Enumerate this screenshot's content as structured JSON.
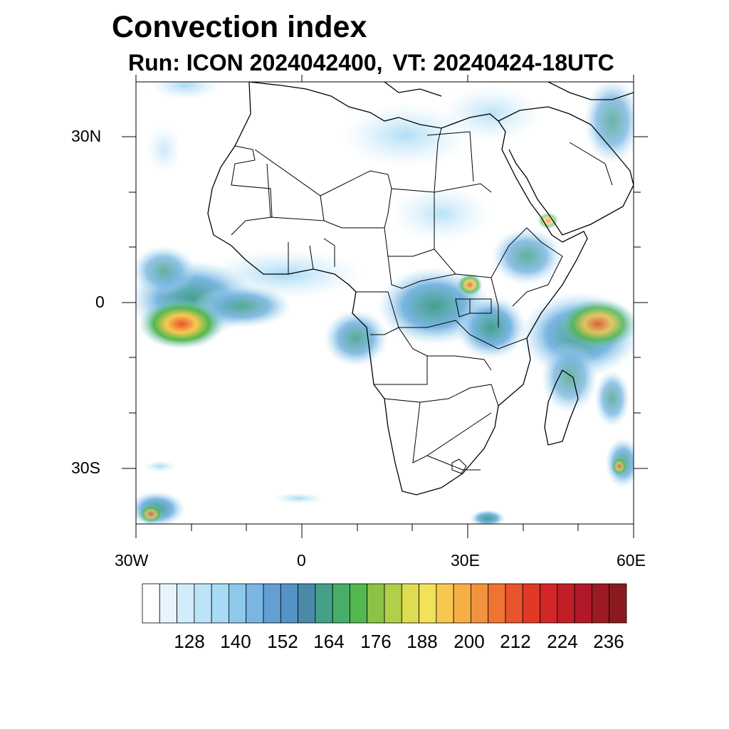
{
  "title": "Convection index",
  "subtitle": {
    "run": "Run: ICON 2024042400,",
    "valid_time": "VT: 20240424-18UTC"
  },
  "axes": {
    "lat_labels": [
      "30N",
      "0",
      "30S"
    ],
    "lon_labels": [
      "30W",
      "0",
      "30E",
      "60E"
    ],
    "lon_range": [
      -30,
      60
    ],
    "lat_range": [
      -40,
      40
    ]
  },
  "colorbar": {
    "colors": [
      "#ffffff",
      "#e8f4fc",
      "#d1ecfa",
      "#bde3f7",
      "#a6daf5",
      "#8ec9ec",
      "#7ab6e2",
      "#649fd4",
      "#5592c8",
      "#4a8aa8",
      "#45a08a",
      "#48ad68",
      "#53b84f",
      "#8cc347",
      "#b2cf4a",
      "#dedc50",
      "#f2e25a",
      "#f7c850",
      "#f6ae47",
      "#f3923c",
      "#ef7432",
      "#e8542b",
      "#e03a27",
      "#d32626",
      "#c11e28",
      "#b0182a",
      "#9c1a22",
      "#8a1a1e"
    ],
    "tick_labels": [
      "128",
      "140",
      "152",
      "164",
      "176",
      "188",
      "200",
      "212",
      "224",
      "236"
    ]
  }
}
